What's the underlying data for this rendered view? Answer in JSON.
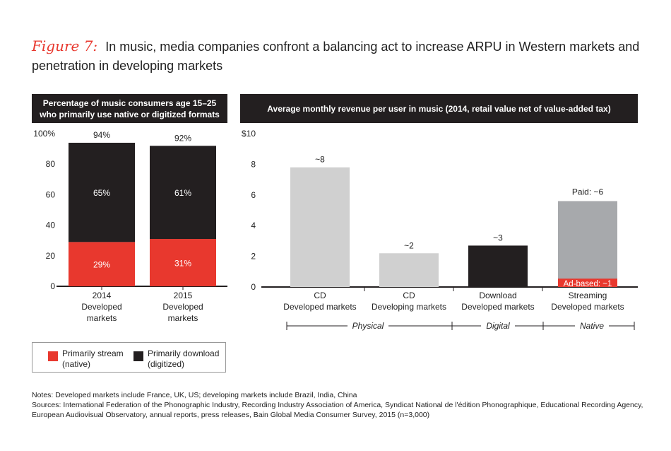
{
  "figure_label": "Figure 7:",
  "title_text": "In music, media companies confront a balancing act to increase ARPU in Western markets and penetration in developing markets",
  "left_panel": {
    "header_line1": "Percentage of music consumers age 15–25",
    "header_line2": "who primarily use native or digitized formats"
  },
  "right_panel": {
    "header": "Average monthly revenue per user in music (2014, retail value net of value-added tax)"
  },
  "legend": {
    "stream_line1": "Primarily stream",
    "stream_line2": "(native)",
    "download_line1": "Primarily download",
    "download_line2": "(digitized)"
  },
  "groups": {
    "physical": "Physical",
    "digital": "Digital",
    "native": "Native"
  },
  "notes_line": "Notes: Developed markets include France, UK, US; developing markets include Brazil, India, China",
  "sources_line": "Sources: International Federation of the Phonographic Industry, Recording Industry Association of America, Syndicat National de l'édition Phonographique, Educational Recording Agency, European Audiovisual Observatory, annual reports, press releases, Bain Global Media Consumer Survey, 2015 (n=3,000)",
  "colors": {
    "stream": "#e8382e",
    "download": "#231f20",
    "light_gray": "#d0d0d0",
    "mid_gray": "#a7a9ac",
    "accent": "#e8382e"
  },
  "chart_data": [
    {
      "type": "bar",
      "stacked": true,
      "title": "Percentage of music consumers age 15–25 who primarily use native or digitized formats",
      "categories": [
        [
          "2014",
          "Developed",
          "markets"
        ],
        [
          "2015",
          "Developed",
          "markets"
        ]
      ],
      "series": [
        {
          "name": "Primarily stream (native)",
          "values": [
            29,
            31
          ],
          "labels": [
            "29%",
            "31%"
          ]
        },
        {
          "name": "Primarily download (digitized)",
          "values": [
            65,
            61
          ],
          "labels": [
            "65%",
            "61%"
          ]
        }
      ],
      "totals": [
        94,
        92
      ],
      "total_labels": [
        "94%",
        "92%"
      ],
      "ylim": [
        0,
        100
      ],
      "yticks": [
        0,
        20,
        40,
        60,
        80,
        100
      ],
      "ytick_labels": [
        "0",
        "20",
        "40",
        "60",
        "80",
        "100%"
      ]
    },
    {
      "type": "bar",
      "title": "Average monthly revenue per user in music (2014, retail value net of value-added tax)",
      "categories": [
        [
          "CD",
          "Developed markets"
        ],
        [
          "CD",
          "Developing markets"
        ],
        [
          "Download",
          "Developed markets"
        ],
        [
          "Streaming",
          "Developed markets"
        ]
      ],
      "values": [
        7.8,
        2.2,
        2.7,
        5.6
      ],
      "value_labels": [
        "~8",
        "~2",
        "~3",
        "Paid: ~6"
      ],
      "bar_colors": [
        "#d0d0d0",
        "#d0d0d0",
        "#231f20",
        "#a7a9ac"
      ],
      "ad_based": {
        "value": 0.5,
        "label": "Ad-based: ~1"
      },
      "ylim": [
        0,
        10
      ],
      "yticks": [
        0,
        2,
        4,
        6,
        8,
        10
      ],
      "ytick_labels": [
        "0",
        "2",
        "4",
        "6",
        "8",
        "$10"
      ]
    }
  ]
}
